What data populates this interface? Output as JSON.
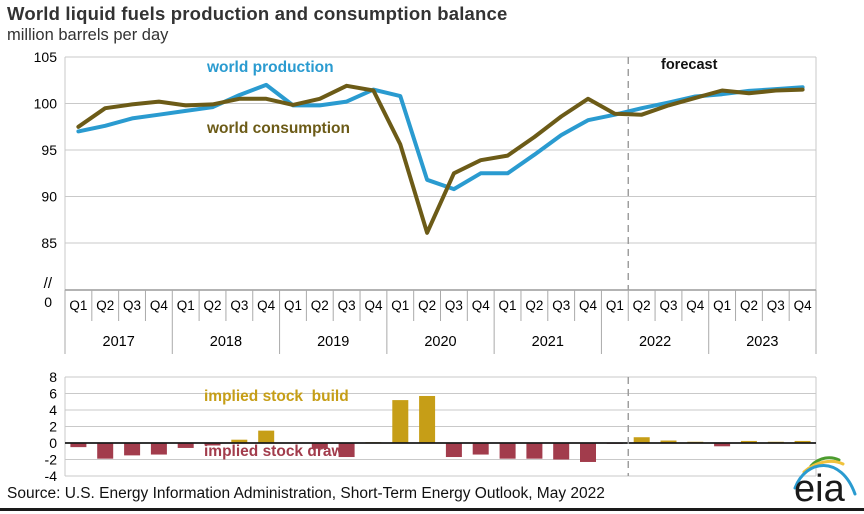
{
  "header": {
    "title": "World liquid fuels production and consumption balance",
    "subtitle": "million barrels per day"
  },
  "source_line": "Source: U.S. Energy Information Administration, Short-Term Energy Outlook, May 2022",
  "logo": {
    "text": "eia"
  },
  "colors": {
    "production": "#2a9bd0",
    "consumption": "#6c5b17",
    "build": "#c69e17",
    "draw": "#a23c4c",
    "gridline": "#c9c9c9",
    "axis": "#9a9a9a",
    "zero_line": "#1a1a1a",
    "forecast_line": "#9a9a9a",
    "text_dark": "#111111"
  },
  "chart_data": [
    {
      "type": "line",
      "title": "World liquid fuels production and consumption balance",
      "ylabel": "million barrels per day",
      "quarter_labels": [
        "Q1",
        "Q2",
        "Q3",
        "Q4"
      ],
      "years": [
        "2017",
        "2018",
        "2019",
        "2020",
        "2021",
        "2022",
        "2023"
      ],
      "yticks": [
        105,
        100,
        95,
        90,
        85
      ],
      "axis_break_label": "//",
      "zero_label": "0",
      "ylim": [
        85,
        105
      ],
      "forecast": {
        "label": "forecast",
        "boundary_after_index": 20
      },
      "legend_position": "inline-annotations",
      "series": [
        {
          "name": "world production",
          "values": [
            97.0,
            97.6,
            98.4,
            98.8,
            99.2,
            99.6,
            100.9,
            102.0,
            99.8,
            99.8,
            100.2,
            101.5,
            100.8,
            91.8,
            90.8,
            92.5,
            92.5,
            94.5,
            96.6,
            98.2,
            98.8,
            99.5,
            100.1,
            100.75,
            101.0,
            101.35,
            101.55,
            101.75
          ]
        },
        {
          "name": "world consumption",
          "values": [
            97.5,
            99.5,
            99.9,
            100.2,
            99.8,
            99.9,
            100.5,
            100.5,
            99.85,
            100.5,
            101.9,
            101.4,
            95.6,
            86.1,
            92.5,
            93.9,
            94.4,
            96.4,
            98.6,
            100.5,
            98.9,
            98.8,
            99.8,
            100.6,
            101.4,
            101.1,
            101.4,
            101.5
          ]
        }
      ]
    },
    {
      "type": "bar",
      "name": "implied stock change",
      "positive_label": "implied stock  build",
      "negative_label": "implied stock draw",
      "yticks": [
        8,
        6,
        4,
        2,
        0,
        -2,
        -4
      ],
      "ylim": [
        -4,
        8
      ],
      "values": [
        -0.5,
        -1.9,
        -1.5,
        -1.4,
        -0.6,
        -0.3,
        0.4,
        1.5,
        -0.05,
        -0.7,
        -1.7,
        0.1,
        5.2,
        5.7,
        -1.7,
        -1.4,
        -1.9,
        -1.9,
        -2.0,
        -2.3,
        -0.1,
        0.7,
        0.3,
        0.15,
        -0.4,
        0.25,
        0.15,
        0.25
      ]
    }
  ]
}
